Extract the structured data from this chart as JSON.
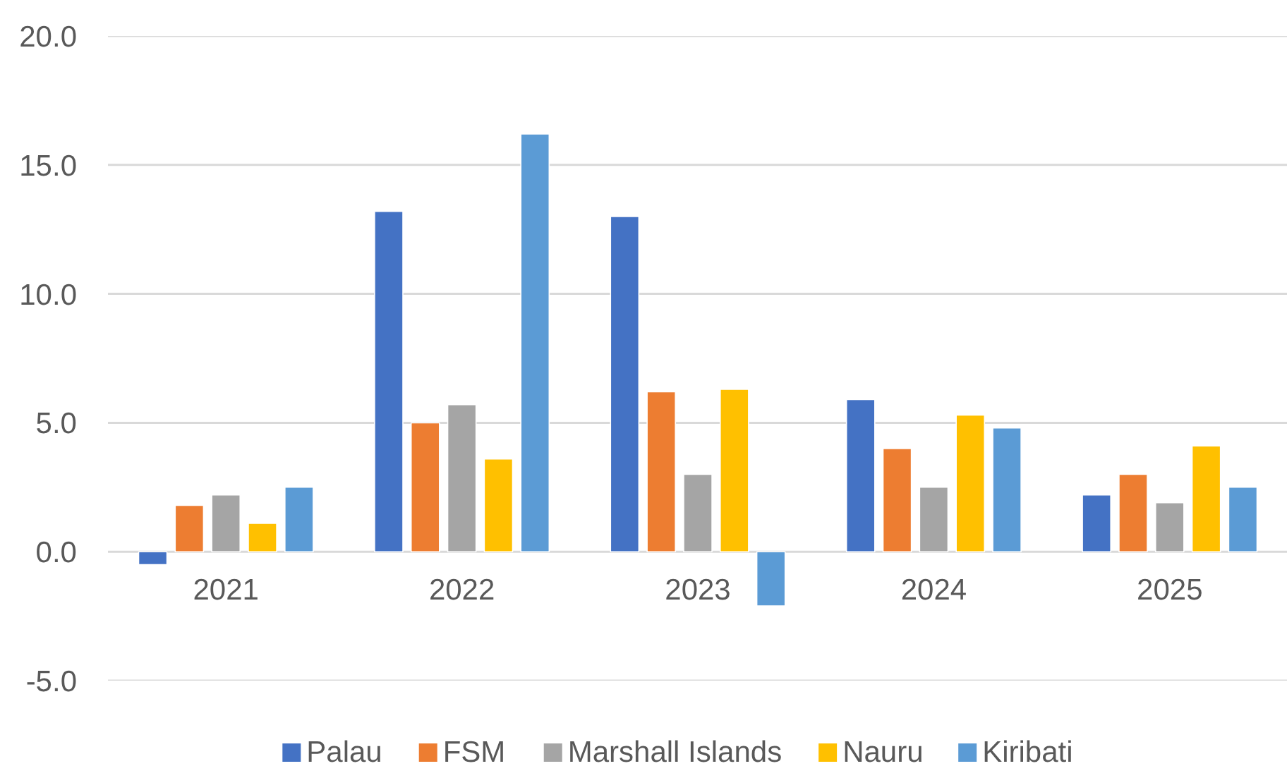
{
  "chart_data": {
    "type": "bar",
    "categories": [
      "2021",
      "2022",
      "2023",
      "2024",
      "2025"
    ],
    "series": [
      {
        "name": "Palau",
        "color": "#4472c4",
        "values": [
          -0.5,
          13.2,
          13.0,
          5.9,
          2.2
        ]
      },
      {
        "name": "FSM",
        "color": "#ed7d31",
        "values": [
          1.8,
          5.0,
          6.2,
          4.0,
          3.0
        ]
      },
      {
        "name": "Marshall Islands",
        "color": "#a5a5a5",
        "values": [
          2.2,
          5.7,
          3.0,
          2.5,
          1.9
        ]
      },
      {
        "name": "Nauru",
        "color": "#ffc000",
        "values": [
          1.1,
          3.6,
          6.3,
          5.3,
          4.1
        ]
      },
      {
        "name": "Kiribati",
        "color": "#5b9bd5",
        "values": [
          2.5,
          16.2,
          -2.1,
          4.8,
          2.5
        ]
      }
    ],
    "ylim": [
      -5,
      20
    ],
    "yticks": [
      {
        "value": -5,
        "label": "-5.0"
      },
      {
        "value": 0,
        "label": "0.0"
      },
      {
        "value": 5,
        "label": "5.0"
      },
      {
        "value": 10,
        "label": "10.0"
      },
      {
        "value": 15,
        "label": "15.0"
      },
      {
        "value": 20,
        "label": "20.0"
      }
    ],
    "grid": "y",
    "legend": "bottom"
  }
}
